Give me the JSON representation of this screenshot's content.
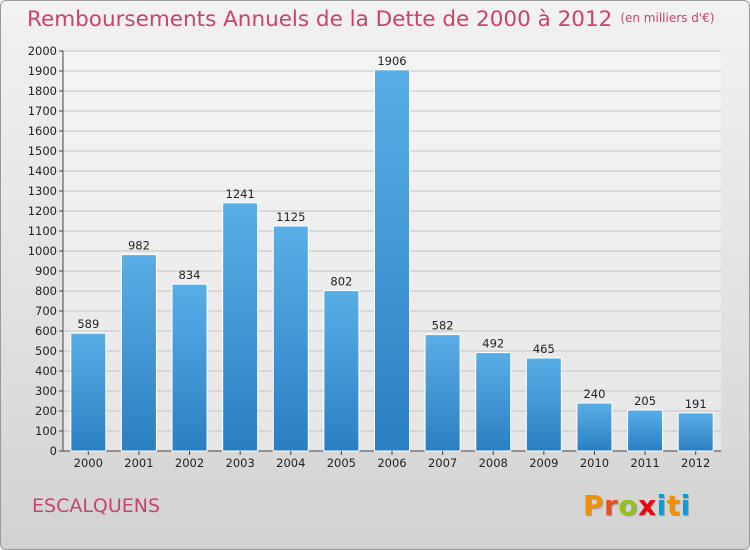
{
  "header": {
    "title": "Remboursements Annuels de la Dette de 2000 à 2012",
    "subtitle": "(en milliers d'€)"
  },
  "footer": {
    "city": "ESCALQUENS",
    "logo_letters": [
      "P",
      "r",
      "o",
      "x",
      "i",
      "t",
      "i"
    ]
  },
  "colors": {
    "title": "#c8446a",
    "bar_top": "#5aaee6",
    "bar_bottom": "#2a7fc3",
    "logo": [
      "#f39200",
      "#e94e1b",
      "#95c11f",
      "#e30613",
      "#009fe3",
      "#f39200",
      "#009fe3"
    ]
  },
  "chart_data": {
    "type": "bar",
    "title": "Remboursements Annuels de la Dette de 2000 à 2012",
    "subtitle": "(en milliers d'€)",
    "categories": [
      "2000",
      "2001",
      "2002",
      "2003",
      "2004",
      "2005",
      "2006",
      "2007",
      "2008",
      "2009",
      "2010",
      "2011",
      "2012"
    ],
    "values": [
      589,
      982,
      834,
      1241,
      1125,
      802,
      1906,
      582,
      492,
      465,
      240,
      205,
      191
    ],
    "data_labels": [
      "589",
      "982",
      "834",
      "1241",
      "1125",
      "802",
      "1906",
      "582",
      "492",
      "465",
      "240",
      "205",
      "191"
    ],
    "ylim": [
      0,
      2000
    ],
    "yticks": [
      0,
      100,
      200,
      300,
      400,
      500,
      600,
      700,
      800,
      900,
      1000,
      1100,
      1200,
      1300,
      1400,
      1500,
      1600,
      1700,
      1800,
      1900,
      2000
    ],
    "grid": true,
    "legend": "none"
  }
}
